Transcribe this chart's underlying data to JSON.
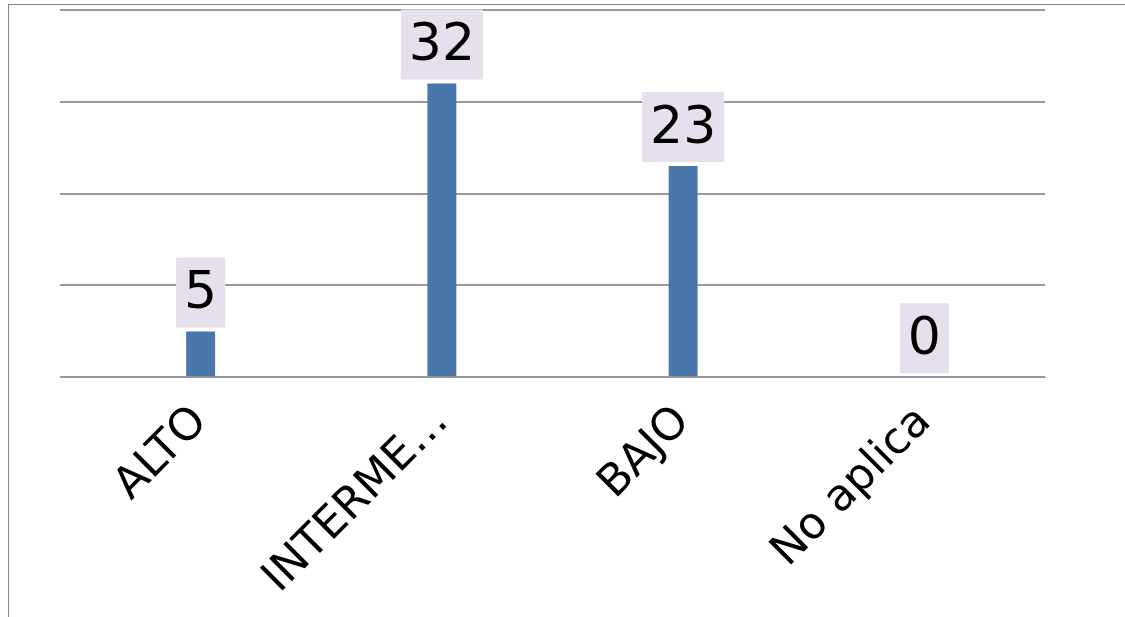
{
  "chart_data": {
    "type": "bar",
    "categories": [
      "ALTO",
      "INTERME…",
      "BAJO",
      "No aplica"
    ],
    "values": [
      5,
      32,
      23,
      0
    ],
    "color": "#4a76ab",
    "data_labels": true,
    "ylim": [
      0,
      40
    ],
    "yticks": [
      {
        "value": 0,
        "label": null
      },
      {
        "value": 10,
        "label": null
      },
      {
        "value": 20,
        "label": null
      },
      {
        "value": 30,
        "label": null
      },
      {
        "value": 40,
        "label": null
      }
    ],
    "grid": "y",
    "tick_labels": "x",
    "legend": false
  }
}
